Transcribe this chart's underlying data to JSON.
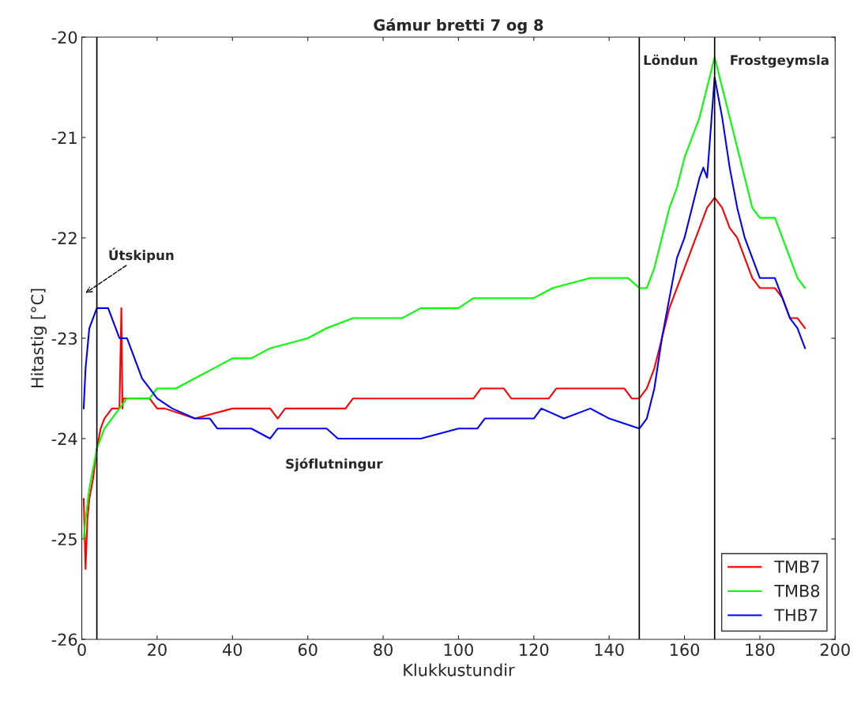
{
  "chart_data": {
    "type": "line",
    "title": "Gámur bretti 7 og 8",
    "xlabel": "Klukkustundir",
    "ylabel": "Hitastig [°C]",
    "xlim": [
      0,
      200
    ],
    "xticks": [
      0,
      20,
      40,
      60,
      80,
      100,
      120,
      140,
      160,
      180,
      200
    ],
    "ylim": [
      -26,
      -20
    ],
    "yticks": [
      -26,
      -25,
      -24,
      -23,
      -22,
      -21,
      -20
    ],
    "grid": false,
    "legend": "bottom right",
    "line_style": "solid",
    "series": [
      {
        "name": "TMB7",
        "color": "#ff0000",
        "x": [
          0.5,
          1,
          1.5,
          2,
          3,
          4,
          5,
          6,
          8,
          10,
          10.5,
          10.8,
          11,
          14,
          16,
          18,
          20,
          22,
          30,
          40,
          50,
          52,
          54,
          70,
          72,
          104,
          106,
          112,
          114,
          124,
          126,
          144,
          146,
          148,
          150,
          152,
          154,
          156,
          158,
          160,
          162,
          164,
          166,
          168,
          170,
          172,
          174,
          176,
          178,
          180,
          184,
          186,
          188,
          190,
          192
        ],
        "values": [
          -24.6,
          -25.3,
          -24.8,
          -24.6,
          -24.4,
          -24.1,
          -23.9,
          -23.8,
          -23.7,
          -23.7,
          -22.7,
          -23.7,
          -23.6,
          -23.6,
          -23.6,
          -23.6,
          -23.7,
          -23.7,
          -23.8,
          -23.7,
          -23.7,
          -23.8,
          -23.7,
          -23.7,
          -23.6,
          -23.6,
          -23.5,
          -23.5,
          -23.6,
          -23.6,
          -23.5,
          -23.5,
          -23.6,
          -23.6,
          -23.5,
          -23.3,
          -23.0,
          -22.7,
          -22.5,
          -22.3,
          -22.1,
          -21.9,
          -21.7,
          -21.6,
          -21.7,
          -21.9,
          -22.0,
          -22.2,
          -22.4,
          -22.5,
          -22.5,
          -22.6,
          -22.8,
          -22.8,
          -22.9
        ]
      },
      {
        "name": "TMB8",
        "color": "#00ff00",
        "x": [
          0.5,
          1,
          2,
          4,
          6,
          8,
          10,
          12,
          18,
          20,
          25,
          30,
          35,
          40,
          45,
          50,
          60,
          65,
          72,
          85,
          90,
          100,
          104,
          120,
          125,
          135,
          145,
          148,
          150,
          152,
          154,
          156,
          158,
          160,
          162,
          164,
          166,
          168,
          170,
          172,
          174,
          176,
          178,
          180,
          184,
          186,
          188,
          190,
          192
        ],
        "values": [
          -25.0,
          -24.8,
          -24.5,
          -24.1,
          -23.9,
          -23.8,
          -23.7,
          -23.6,
          -23.6,
          -23.5,
          -23.5,
          -23.4,
          -23.3,
          -23.2,
          -23.2,
          -23.1,
          -23.0,
          -22.9,
          -22.8,
          -22.8,
          -22.7,
          -22.7,
          -22.6,
          -22.6,
          -22.5,
          -22.4,
          -22.4,
          -22.5,
          -22.5,
          -22.3,
          -22.0,
          -21.7,
          -21.5,
          -21.2,
          -21.0,
          -20.8,
          -20.5,
          -20.2,
          -20.5,
          -20.8,
          -21.1,
          -21.4,
          -21.7,
          -21.8,
          -21.8,
          -22.0,
          -22.2,
          -22.4,
          -22.5
        ]
      },
      {
        "name": "THB7",
        "color": "#0000ff",
        "x": [
          0.5,
          1,
          2,
          3,
          4,
          7,
          8,
          10,
          12,
          14,
          16,
          18,
          20,
          24,
          30,
          34,
          36,
          45,
          50,
          52,
          65,
          68,
          90,
          100,
          105,
          107,
          120,
          122,
          128,
          135,
          140,
          148,
          150,
          152,
          154,
          156,
          158,
          160,
          162,
          164,
          165,
          166,
          167,
          168,
          170,
          172,
          174,
          176,
          178,
          180,
          184,
          186,
          188,
          190,
          192
        ],
        "values": [
          -23.7,
          -23.3,
          -22.9,
          -22.8,
          -22.7,
          -22.7,
          -22.8,
          -23.0,
          -23.0,
          -23.2,
          -23.4,
          -23.5,
          -23.6,
          -23.7,
          -23.8,
          -23.8,
          -23.9,
          -23.9,
          -24.0,
          -23.9,
          -23.9,
          -24.0,
          -24.0,
          -23.9,
          -23.9,
          -23.8,
          -23.8,
          -23.7,
          -23.8,
          -23.7,
          -23.8,
          -23.9,
          -23.8,
          -23.5,
          -23.0,
          -22.6,
          -22.2,
          -22.0,
          -21.7,
          -21.4,
          -21.3,
          -21.4,
          -20.9,
          -20.4,
          -20.8,
          -21.3,
          -21.7,
          -22.0,
          -22.2,
          -22.4,
          -22.4,
          -22.6,
          -22.8,
          -22.9,
          -23.1
        ]
      }
    ],
    "ref_lines": [
      {
        "axis": "x",
        "value": 4,
        "color": "#000000"
      },
      {
        "axis": "x",
        "value": 148,
        "color": "#000000"
      },
      {
        "axis": "x",
        "value": 168,
        "color": "#000000"
      }
    ],
    "annotations": [
      "Útskipun",
      "Sjóflutningur",
      "Löndun",
      "Frostgeymsla"
    ]
  }
}
